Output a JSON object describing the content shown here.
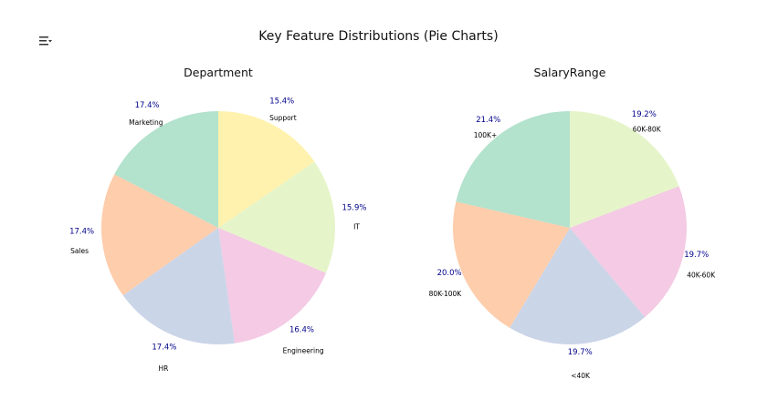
{
  "figure": {
    "suptitle": "Key Feature Distributions (Pie Charts)"
  },
  "colors": {
    "mint": "#b3e2cd",
    "peach": "#fdcdac",
    "lavender": "#cbd5e8",
    "pink": "#f4cae4",
    "lime": "#e6f5c9",
    "yellow": "#fff2ae",
    "pct_text": "#00008b",
    "label_text": "#000000"
  },
  "chart_data": [
    {
      "type": "pie",
      "title": "Department",
      "categories": [
        "Support",
        "IT",
        "Engineering",
        "HR",
        "Sales",
        "Marketing"
      ],
      "labels": [
        "Support",
        "IT",
        "Engineering",
        "HR",
        "Sales",
        "Marketing"
      ],
      "values": [
        15.4,
        15.9,
        16.4,
        17.4,
        17.4,
        17.4
      ],
      "pct_labels": [
        "15.4%",
        "15.9%",
        "16.4%",
        "17.4%",
        "17.4%",
        "17.4%"
      ],
      "colors": [
        "#fff2ae",
        "#e6f5c9",
        "#f4cae4",
        "#cbd5e8",
        "#fdcdac",
        "#b3e2cd"
      ],
      "start_angle_deg": 90,
      "direction": "clockwise"
    },
    {
      "type": "pie",
      "title": "SalaryRange",
      "categories": [
        "60K-80K",
        "40K-60K",
        "<40K",
        "80K-100K",
        "100K+"
      ],
      "labels": [
        "60K-80K",
        "40K-60K",
        "<40K",
        "80K-100K",
        "100K+"
      ],
      "values": [
        19.2,
        19.7,
        19.7,
        20.0,
        21.4
      ],
      "pct_labels": [
        "19.2%",
        "19.7%",
        "19.7%",
        "20.0%",
        "21.4%"
      ],
      "colors": [
        "#e6f5c9",
        "#f4cae4",
        "#cbd5e8",
        "#fdcdac",
        "#b3e2cd"
      ],
      "start_angle_deg": 90,
      "direction": "clockwise"
    }
  ]
}
